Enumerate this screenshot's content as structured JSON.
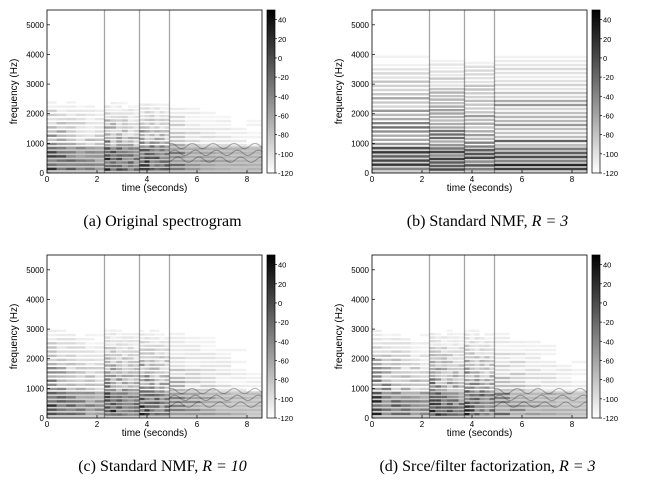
{
  "chart_data": [
    {
      "type": "heatmap",
      "caption_prefix": "(a) Original spectrogram",
      "caption_math": "",
      "xlabel": "time (seconds)",
      "ylabel": "frequency (Hz)",
      "xlim": [
        0,
        8.6
      ],
      "ylim": [
        0,
        5500
      ],
      "xticks": [
        0,
        2,
        4,
        6,
        8
      ],
      "yticks": [
        0,
        1000,
        2000,
        3000,
        4000,
        5000
      ],
      "colorbar_ticks": [
        40,
        20,
        0,
        -20,
        -40,
        -60,
        -80,
        -100,
        -120
      ],
      "colorbar_range": [
        -120,
        50
      ],
      "colormap": [
        "#000000",
        "#ffffff"
      ],
      "note_onsets_s": [
        0,
        2.3,
        3.7,
        4.9
      ],
      "style": "original"
    },
    {
      "type": "heatmap",
      "caption_prefix": "(b) Standard NMF, ",
      "caption_math": "R = 3",
      "xlabel": "time (seconds)",
      "ylabel": "frequency (Hz)",
      "xlim": [
        0,
        8.6
      ],
      "ylim": [
        0,
        5500
      ],
      "xticks": [
        0,
        2,
        4,
        6,
        8
      ],
      "yticks": [
        0,
        1000,
        2000,
        3000,
        4000,
        5000
      ],
      "colorbar_ticks": [
        40,
        20,
        0,
        -20,
        -40,
        -60,
        -80,
        -100,
        -120
      ],
      "colorbar_range": [
        -120,
        50
      ],
      "colormap": [
        "#000000",
        "#ffffff"
      ],
      "note_onsets_s": [
        0,
        2.3,
        3.7,
        4.9
      ],
      "style": "nmf3"
    },
    {
      "type": "heatmap",
      "caption_prefix": "(c) Standard NMF, ",
      "caption_math": "R = 10",
      "xlabel": "time (seconds)",
      "ylabel": "frequency (Hz)",
      "xlim": [
        0,
        8.6
      ],
      "ylim": [
        0,
        5500
      ],
      "xticks": [
        0,
        2,
        4,
        6,
        8
      ],
      "yticks": [
        0,
        1000,
        2000,
        3000,
        4000,
        5000
      ],
      "colorbar_ticks": [
        40,
        20,
        0,
        -20,
        -40,
        -60,
        -80,
        -100,
        -120
      ],
      "colorbar_range": [
        -120,
        50
      ],
      "colormap": [
        "#000000",
        "#ffffff"
      ],
      "note_onsets_s": [
        0,
        2.3,
        3.7,
        4.9
      ],
      "style": "nmf10"
    },
    {
      "type": "heatmap",
      "caption_prefix": "(d) Srce/filter factorization, ",
      "caption_math": "R = 3",
      "xlabel": "time (seconds)",
      "ylabel": "frequency (Hz)",
      "xlim": [
        0,
        8.6
      ],
      "ylim": [
        0,
        5500
      ],
      "xticks": [
        0,
        2,
        4,
        6,
        8
      ],
      "yticks": [
        0,
        1000,
        2000,
        3000,
        4000,
        5000
      ],
      "colorbar_ticks": [
        40,
        20,
        0,
        -20,
        -40,
        -60,
        -80,
        -100,
        -120
      ],
      "colorbar_range": [
        -120,
        50
      ],
      "colormap": [
        "#000000",
        "#ffffff"
      ],
      "note_onsets_s": [
        0,
        2.3,
        3.7,
        4.9
      ],
      "style": "srcfilter"
    }
  ]
}
